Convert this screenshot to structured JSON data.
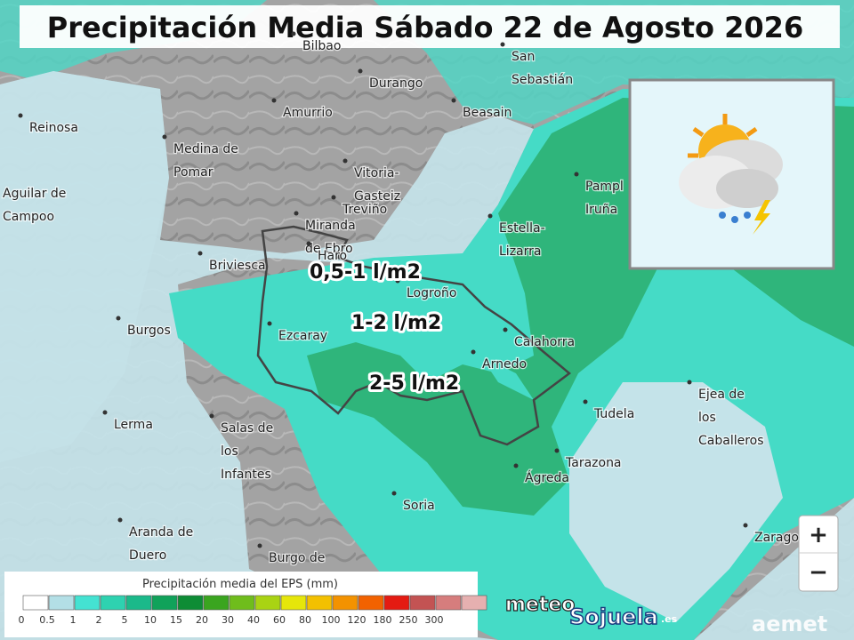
{
  "title": "Precipitación Media Sábado 22 de Agosto 2026",
  "places": [
    {
      "lines": [
        "Bilbao"
      ]
    },
    {
      "lines": [
        "San",
        "Sebastián"
      ]
    },
    {
      "lines": [
        "Durango"
      ]
    },
    {
      "lines": [
        "Reinosa"
      ]
    },
    {
      "lines": [
        "Amurrio"
      ]
    },
    {
      "lines": [
        "Beasain"
      ]
    },
    {
      "lines": [
        "Medina de",
        "Pomar"
      ]
    },
    {
      "lines": [
        "Vitoria-",
        "Gasteiz"
      ]
    },
    {
      "lines": [
        "Aguilar de",
        "Campoo"
      ]
    },
    {
      "lines": [
        "Pampl",
        "Iruña"
      ]
    },
    {
      "lines": [
        "Treviño"
      ]
    },
    {
      "lines": [
        "Estella-",
        "Lizarra"
      ]
    },
    {
      "lines": [
        "Miranda",
        "de Ebro"
      ]
    },
    {
      "lines": [
        "Haro"
      ]
    },
    {
      "lines": [
        "Briviesca"
      ]
    },
    {
      "lines": [
        "Logroño"
      ]
    },
    {
      "lines": [
        "Burgos"
      ]
    },
    {
      "lines": [
        "Ezcaray"
      ]
    },
    {
      "lines": [
        "Calahorra"
      ]
    },
    {
      "lines": [
        "Arnedo"
      ]
    },
    {
      "lines": [
        "Ejea de",
        "los",
        "Caballeros"
      ]
    },
    {
      "lines": [
        "Lerma"
      ]
    },
    {
      "lines": [
        "Tudela"
      ]
    },
    {
      "lines": [
        "Salas de",
        "los",
        "Infantes"
      ]
    },
    {
      "lines": [
        "Tarazona"
      ]
    },
    {
      "lines": [
        "Ágreda"
      ]
    },
    {
      "lines": [
        "Soria"
      ]
    },
    {
      "lines": [
        "Zarago"
      ]
    },
    {
      "lines": [
        "Aranda de",
        "Duero"
      ]
    },
    {
      "lines": [
        "Burgo de"
      ]
    }
  ],
  "precip_labels": [
    "0,5-1 l/m2",
    "1-2 l/m2",
    "2-5 l/m2"
  ],
  "legend": {
    "title": "Precipitación media del EPS (mm)",
    "ticks": [
      0,
      0.5,
      1,
      2,
      5,
      10,
      15,
      20,
      30,
      40,
      60,
      80,
      100,
      120,
      180,
      250,
      300
    ],
    "colors": [
      "#ffffff",
      "#b3dfe6",
      "#44e2d2",
      "#2ed2b0",
      "#1bb98a",
      "#10a25a",
      "#0e8c35",
      "#3aa51f",
      "#6fbd1c",
      "#a9d313",
      "#e6e60a",
      "#f3c000",
      "#f39200",
      "#f26200",
      "#e41b12",
      "#c35353",
      "#d67d7d",
      "#e6b0b0"
    ]
  },
  "zoom": {
    "in": "+",
    "out": "−"
  },
  "logo": {
    "meteo": "meteo",
    "name": "Sojuela",
    "tld": ".es"
  },
  "aemet": "aemet"
}
